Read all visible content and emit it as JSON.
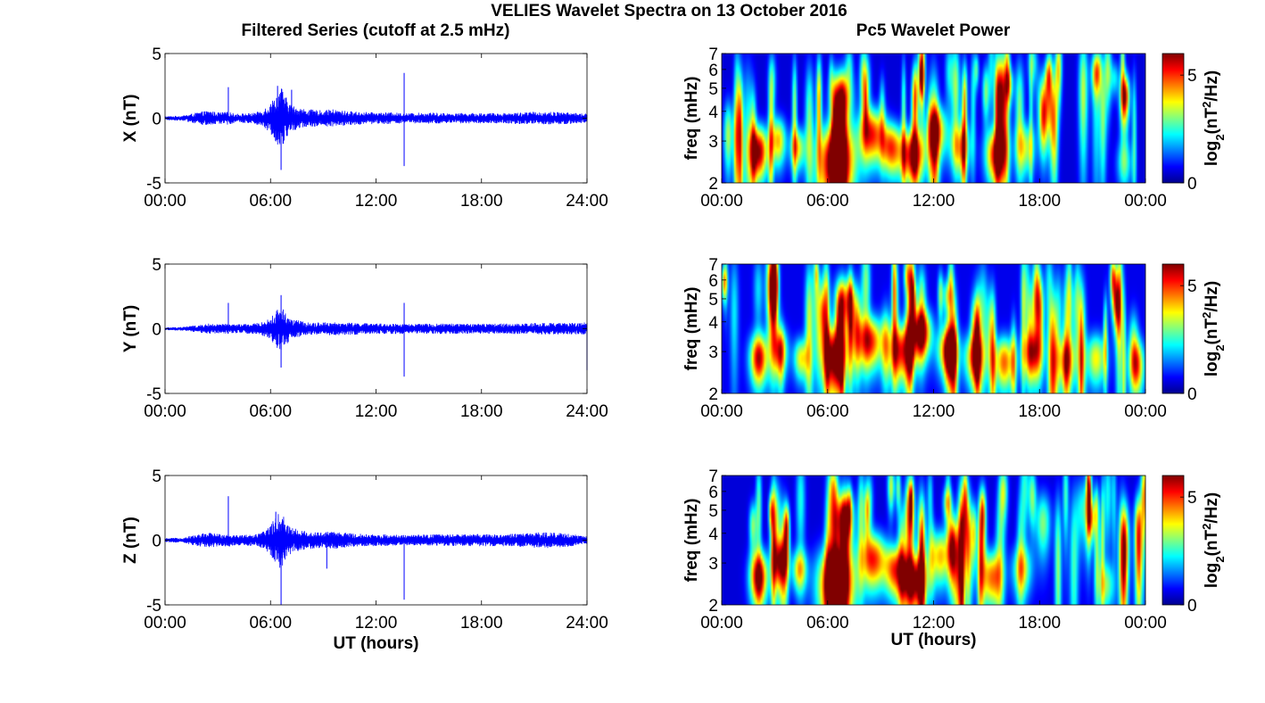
{
  "figure": {
    "title": "VELIES Wavelet Spectra on 13 October 2016",
    "left_title": "Filtered Series (cutoff at 2.5 mHz)",
    "right_title": "Pc5 Wavelet Power"
  },
  "chart_data": [
    {
      "type": "line",
      "name": "x-filtered-series",
      "ylabel": "X (nT)",
      "xlabel": "",
      "xlim": [
        0,
        24
      ],
      "ylim": [
        -5,
        5
      ],
      "xticks": [
        "00:00",
        "06:00",
        "12:00",
        "18:00",
        "24:00"
      ],
      "yticks": [
        "-5",
        "0",
        "5"
      ],
      "series_color": "#0000ff",
      "envelope": {
        "t": [
          0,
          1,
          2,
          2.5,
          3,
          3.6,
          4,
          5,
          5.5,
          6,
          6.3,
          6.6,
          6.9,
          7.2,
          8,
          9,
          9.5,
          10,
          11,
          12,
          13,
          13.5,
          14,
          15,
          16,
          17,
          18,
          19,
          20,
          21,
          22,
          23,
          24
        ],
        "amp": [
          0.15,
          0.2,
          0.5,
          0.6,
          0.45,
          0.5,
          0.35,
          0.4,
          0.6,
          1.2,
          1.8,
          2.5,
          1.6,
          1.0,
          0.7,
          0.6,
          0.7,
          0.6,
          0.5,
          0.45,
          0.45,
          0.4,
          0.4,
          0.45,
          0.4,
          0.4,
          0.4,
          0.4,
          0.45,
          0.5,
          0.5,
          0.45,
          0.35
        ]
      },
      "spikes": [
        {
          "t": 3.6,
          "y": 2.4
        },
        {
          "t": 6.4,
          "y": 2.5
        },
        {
          "t": 6.6,
          "y": -4.0
        },
        {
          "t": 7.2,
          "y": 2.2
        },
        {
          "t": 13.6,
          "y": 3.5
        },
        {
          "t": 13.6,
          "y": -3.7
        }
      ]
    },
    {
      "type": "line",
      "name": "y-filtered-series",
      "ylabel": "Y (nT)",
      "xlabel": "",
      "xlim": [
        0,
        24
      ],
      "ylim": [
        -5,
        5
      ],
      "xticks": [
        "00:00",
        "06:00",
        "12:00",
        "18:00",
        "24:00"
      ],
      "yticks": [
        "-5",
        "0",
        "5"
      ],
      "series_color": "#0000ff",
      "envelope": {
        "t": [
          0,
          1,
          2,
          2.5,
          3,
          3.6,
          4,
          5,
          5.5,
          6,
          6.3,
          6.6,
          6.9,
          7.2,
          8,
          9,
          9.5,
          10,
          11,
          12,
          13,
          13.5,
          14,
          15,
          16,
          17,
          18,
          19,
          20,
          21,
          22,
          23,
          24
        ],
        "amp": [
          0.1,
          0.15,
          0.3,
          0.4,
          0.35,
          0.4,
          0.35,
          0.4,
          0.5,
          0.8,
          1.4,
          1.8,
          1.2,
          0.8,
          0.5,
          0.5,
          0.5,
          0.5,
          0.45,
          0.4,
          0.4,
          0.4,
          0.35,
          0.4,
          0.4,
          0.4,
          0.4,
          0.4,
          0.4,
          0.45,
          0.45,
          0.45,
          0.5
        ]
      },
      "spikes": [
        {
          "t": 3.6,
          "y": 2.0
        },
        {
          "t": 6.6,
          "y": 2.6
        },
        {
          "t": 6.6,
          "y": -3.0
        },
        {
          "t": 13.6,
          "y": 2.0
        },
        {
          "t": 13.6,
          "y": -3.7
        },
        {
          "t": 24.0,
          "y": -3.2
        }
      ]
    },
    {
      "type": "line",
      "name": "z-filtered-series",
      "ylabel": "Z (nT)",
      "xlabel": "UT (hours)",
      "xlim": [
        0,
        24
      ],
      "ylim": [
        -5,
        5
      ],
      "xticks": [
        "00:00",
        "06:00",
        "12:00",
        "18:00",
        "24:00"
      ],
      "yticks": [
        "-5",
        "0",
        "5"
      ],
      "series_color": "#0000ff",
      "envelope": {
        "t": [
          0,
          1,
          2,
          2.5,
          3,
          3.6,
          4,
          5,
          5.5,
          6,
          6.3,
          6.6,
          6.9,
          7.2,
          8,
          9,
          9.5,
          10,
          11,
          12,
          13,
          13.5,
          14,
          15,
          16,
          17,
          18,
          19,
          20,
          21,
          22,
          23,
          24
        ],
        "amp": [
          0.15,
          0.2,
          0.5,
          0.6,
          0.5,
          0.5,
          0.4,
          0.45,
          0.6,
          1.2,
          1.8,
          2.3,
          1.5,
          1.0,
          0.7,
          0.6,
          0.7,
          0.6,
          0.5,
          0.45,
          0.45,
          0.4,
          0.4,
          0.45,
          0.45,
          0.45,
          0.5,
          0.45,
          0.5,
          0.6,
          0.6,
          0.5,
          0.3
        ]
      },
      "spikes": [
        {
          "t": 3.6,
          "y": 3.4
        },
        {
          "t": 6.3,
          "y": 2.2
        },
        {
          "t": 6.6,
          "y": -5.0
        },
        {
          "t": 9.2,
          "y": -2.2
        },
        {
          "t": 13.6,
          "y": -4.6
        }
      ]
    },
    {
      "type": "heatmap",
      "name": "x-wavelet-power",
      "ylabel": "freq (mHz)",
      "xlabel": "",
      "xlim": [
        0,
        24
      ],
      "ylim": [
        2,
        7
      ],
      "yscale": "log",
      "xticks": [
        "00:00",
        "06:00",
        "12:00",
        "18:00",
        "00:00"
      ],
      "yticks": [
        "2",
        "3",
        "4",
        "5",
        "6",
        "7"
      ],
      "colormap": "jet",
      "colorbar": {
        "label": "log2(nT2/Hz)",
        "label_main": "log",
        "label_sub": "2",
        "label_paren_open": "(nT",
        "label_sup": "2",
        "label_tail": "/Hz)",
        "ticks": [
          "0",
          "5"
        ],
        "range": [
          0,
          6
        ]
      },
      "level": 1.0,
      "blobs": [
        {
          "t": 2.1,
          "w": 0.35,
          "f": 2.7,
          "s": 0.5,
          "p": 6.0
        },
        {
          "t": 3.2,
          "w": 0.3,
          "f": 3.0,
          "s": 0.5,
          "p": 4.0
        },
        {
          "t": 4.3,
          "w": 0.3,
          "f": 2.8,
          "s": 0.4,
          "p": 3.5
        },
        {
          "t": 6.5,
          "w": 0.7,
          "f": 2.4,
          "s": 0.7,
          "p": 7.5
        },
        {
          "t": 6.8,
          "w": 0.4,
          "f": 4.5,
          "s": 0.9,
          "p": 5.0
        },
        {
          "t": 8.5,
          "w": 0.5,
          "f": 3.2,
          "s": 0.6,
          "p": 5.0
        },
        {
          "t": 9.6,
          "w": 0.4,
          "f": 2.8,
          "s": 0.5,
          "p": 4.5
        },
        {
          "t": 10.8,
          "w": 0.5,
          "f": 2.6,
          "s": 0.5,
          "p": 5.5
        },
        {
          "t": 12.2,
          "w": 0.4,
          "f": 3.3,
          "s": 0.6,
          "p": 4.0
        },
        {
          "t": 13.5,
          "w": 0.4,
          "f": 2.8,
          "s": 0.5,
          "p": 3.5
        },
        {
          "t": 15.5,
          "w": 0.4,
          "f": 2.6,
          "s": 0.5,
          "p": 5.0
        },
        {
          "t": 17.2,
          "w": 0.4,
          "f": 2.8,
          "s": 0.5,
          "p": 3.0
        },
        {
          "t": 18.3,
          "w": 0.3,
          "f": 4.5,
          "s": 1.0,
          "p": 3.0
        },
        {
          "t": 22.8,
          "w": 0.3,
          "f": 2.4,
          "s": 0.4,
          "p": 2.2
        }
      ]
    },
    {
      "type": "heatmap",
      "name": "y-wavelet-power",
      "ylabel": "freq (mHz)",
      "xlabel": "",
      "xlim": [
        0,
        24
      ],
      "ylim": [
        2,
        7
      ],
      "yscale": "log",
      "xticks": [
        "00:00",
        "06:00",
        "12:00",
        "18:00",
        "00:00"
      ],
      "yticks": [
        "2",
        "3",
        "4",
        "5",
        "6",
        "7"
      ],
      "colormap": "jet",
      "colorbar": {
        "label": "log2(nT2/Hz)",
        "label_main": "log",
        "label_sub": "2",
        "label_paren_open": "(nT",
        "label_sup": "2",
        "label_tail": "/Hz)",
        "ticks": [
          "0",
          "5"
        ],
        "range": [
          0,
          6
        ]
      },
      "level": 1.5,
      "blobs": [
        {
          "t": 2.1,
          "w": 0.35,
          "f": 2.8,
          "s": 0.5,
          "p": 5.5
        },
        {
          "t": 3.3,
          "w": 0.3,
          "f": 3.0,
          "s": 0.5,
          "p": 4.0
        },
        {
          "t": 4.5,
          "w": 0.3,
          "f": 2.8,
          "s": 0.4,
          "p": 3.5
        },
        {
          "t": 6.4,
          "w": 0.5,
          "f": 2.8,
          "s": 0.7,
          "p": 6.5
        },
        {
          "t": 7.0,
          "w": 0.4,
          "f": 4.8,
          "s": 0.9,
          "p": 4.5
        },
        {
          "t": 8.4,
          "w": 0.5,
          "f": 3.3,
          "s": 0.6,
          "p": 5.0
        },
        {
          "t": 10.2,
          "w": 0.5,
          "f": 3.0,
          "s": 0.6,
          "p": 5.0
        },
        {
          "t": 11.3,
          "w": 0.4,
          "f": 3.6,
          "s": 0.6,
          "p": 5.5
        },
        {
          "t": 12.8,
          "w": 0.4,
          "f": 3.0,
          "s": 0.5,
          "p": 4.5
        },
        {
          "t": 14.3,
          "w": 0.4,
          "f": 2.8,
          "s": 0.5,
          "p": 4.0
        },
        {
          "t": 16.0,
          "w": 0.4,
          "f": 2.7,
          "s": 0.5,
          "p": 4.5
        },
        {
          "t": 17.6,
          "w": 0.4,
          "f": 2.9,
          "s": 0.5,
          "p": 4.0
        },
        {
          "t": 19.5,
          "w": 0.4,
          "f": 2.7,
          "s": 0.5,
          "p": 3.5
        },
        {
          "t": 21.2,
          "w": 0.4,
          "f": 2.8,
          "s": 0.5,
          "p": 3.5
        },
        {
          "t": 23.5,
          "w": 0.3,
          "f": 2.6,
          "s": 0.5,
          "p": 4.5
        }
      ]
    },
    {
      "type": "heatmap",
      "name": "z-wavelet-power",
      "ylabel": "freq (mHz)",
      "xlabel": "UT (hours)",
      "xlim": [
        0,
        24
      ],
      "ylim": [
        2,
        7
      ],
      "yscale": "log",
      "xticks": [
        "00:00",
        "06:00",
        "12:00",
        "18:00",
        "00:00"
      ],
      "yticks": [
        "2",
        "3",
        "4",
        "5",
        "6",
        "7"
      ],
      "colormap": "jet",
      "colorbar": {
        "label": "log2(nT2/Hz)",
        "label_main": "log",
        "label_sub": "2",
        "label_paren_open": "(nT",
        "label_sup": "2",
        "label_tail": "/Hz)",
        "ticks": [
          "0",
          "5"
        ],
        "range": [
          0,
          6
        ]
      },
      "level": 1.0,
      "blobs": [
        {
          "t": 2.1,
          "w": 0.35,
          "f": 2.6,
          "s": 0.5,
          "p": 6.2
        },
        {
          "t": 3.3,
          "w": 0.3,
          "f": 3.0,
          "s": 0.5,
          "p": 4.0
        },
        {
          "t": 4.4,
          "w": 0.3,
          "f": 2.8,
          "s": 0.4,
          "p": 3.5
        },
        {
          "t": 6.5,
          "w": 0.7,
          "f": 2.4,
          "s": 0.7,
          "p": 7.5
        },
        {
          "t": 6.9,
          "w": 0.4,
          "f": 4.5,
          "s": 0.9,
          "p": 5.0
        },
        {
          "t": 8.6,
          "w": 0.5,
          "f": 3.1,
          "s": 0.6,
          "p": 5.0
        },
        {
          "t": 9.8,
          "w": 0.4,
          "f": 2.8,
          "s": 0.5,
          "p": 4.5
        },
        {
          "t": 10.9,
          "w": 0.5,
          "f": 2.5,
          "s": 0.5,
          "p": 5.5
        },
        {
          "t": 12.4,
          "w": 0.4,
          "f": 3.2,
          "s": 0.6,
          "p": 4.0
        },
        {
          "t": 15.3,
          "w": 0.4,
          "f": 2.6,
          "s": 0.5,
          "p": 4.5
        },
        {
          "t": 17.0,
          "w": 0.4,
          "f": 2.8,
          "s": 0.5,
          "p": 3.0
        },
        {
          "t": 18.2,
          "w": 0.3,
          "f": 4.4,
          "s": 1.0,
          "p": 2.8
        },
        {
          "t": 21.8,
          "w": 0.3,
          "f": 2.4,
          "s": 0.4,
          "p": 2.4
        }
      ]
    }
  ]
}
